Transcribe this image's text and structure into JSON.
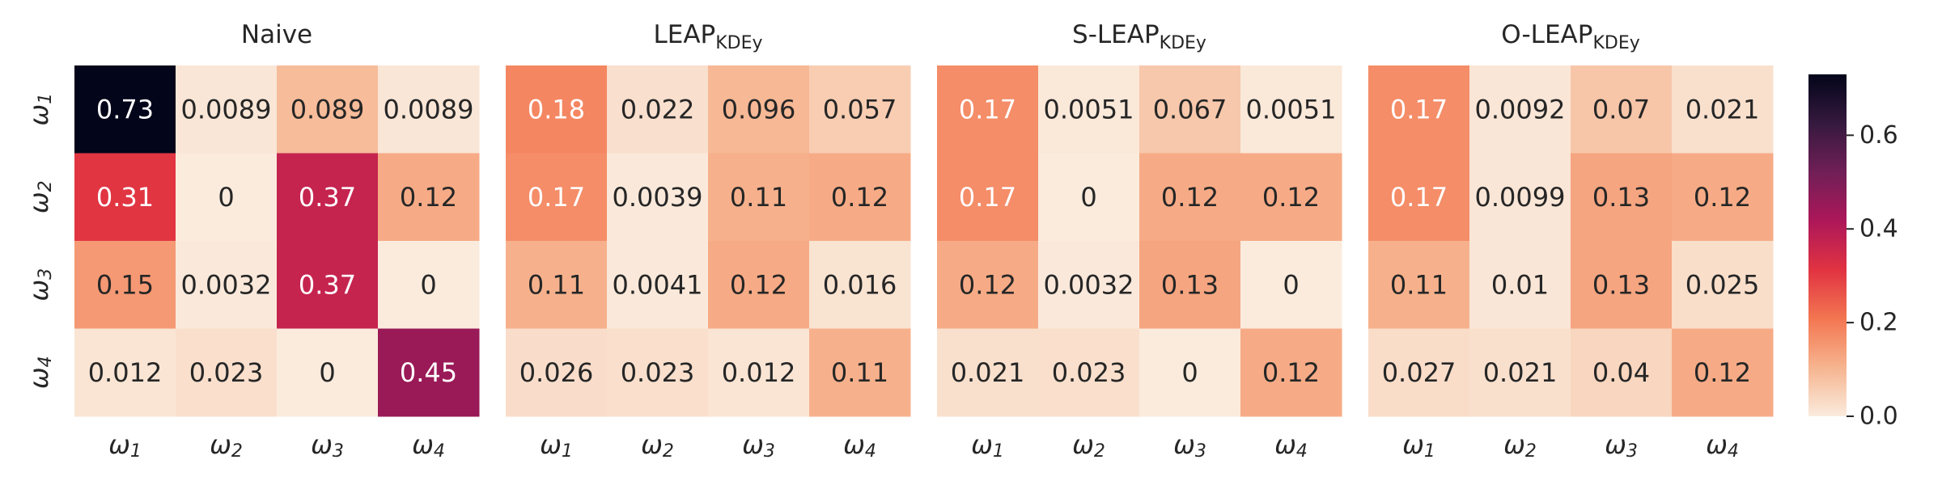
{
  "chart_data": [
    {
      "type": "heatmap",
      "title": "Naive",
      "title_subscript": "",
      "rows": [
        "ω1",
        "ω2",
        "ω3",
        "ω4"
      ],
      "cols": [
        "ω1",
        "ω2",
        "ω3",
        "ω4"
      ],
      "values": [
        [
          0.73,
          0.0089,
          0.089,
          0.0089
        ],
        [
          0.31,
          0,
          0.37,
          0.12
        ],
        [
          0.15,
          0.0032,
          0.37,
          0
        ],
        [
          0.012,
          0.023,
          0,
          0.45
        ]
      ],
      "labels": [
        [
          "0.73",
          "0.0089",
          "0.089",
          "0.0089"
        ],
        [
          "0.31",
          "0",
          "0.37",
          "0.12"
        ],
        [
          "0.15",
          "0.0032",
          "0.37",
          "0"
        ],
        [
          "0.012",
          "0.023",
          "0",
          "0.45"
        ]
      ]
    },
    {
      "type": "heatmap",
      "title": "LEAP",
      "title_subscript": "KDEy",
      "rows": [
        "ω1",
        "ω2",
        "ω3",
        "ω4"
      ],
      "cols": [
        "ω1",
        "ω2",
        "ω3",
        "ω4"
      ],
      "values": [
        [
          0.18,
          0.022,
          0.096,
          0.057
        ],
        [
          0.17,
          0.0039,
          0.11,
          0.12
        ],
        [
          0.11,
          0.0041,
          0.12,
          0.016
        ],
        [
          0.026,
          0.023,
          0.012,
          0.11
        ]
      ],
      "labels": [
        [
          "0.18",
          "0.022",
          "0.096",
          "0.057"
        ],
        [
          "0.17",
          "0.0039",
          "0.11",
          "0.12"
        ],
        [
          "0.11",
          "0.0041",
          "0.12",
          "0.016"
        ],
        [
          "0.026",
          "0.023",
          "0.012",
          "0.11"
        ]
      ]
    },
    {
      "type": "heatmap",
      "title": "S-LEAP",
      "title_subscript": "KDEy",
      "rows": [
        "ω1",
        "ω2",
        "ω3",
        "ω4"
      ],
      "cols": [
        "ω1",
        "ω2",
        "ω3",
        "ω4"
      ],
      "values": [
        [
          0.17,
          0.0051,
          0.067,
          0.0051
        ],
        [
          0.17,
          0,
          0.12,
          0.12
        ],
        [
          0.12,
          0.0032,
          0.13,
          0
        ],
        [
          0.021,
          0.023,
          0,
          0.12
        ]
      ],
      "labels": [
        [
          "0.17",
          "0.0051",
          "0.067",
          "0.0051"
        ],
        [
          "0.17",
          "0",
          "0.12",
          "0.12"
        ],
        [
          "0.12",
          "0.0032",
          "0.13",
          "0"
        ],
        [
          "0.021",
          "0.023",
          "0",
          "0.12"
        ]
      ]
    },
    {
      "type": "heatmap",
      "title": "O-LEAP",
      "title_subscript": "KDEy",
      "rows": [
        "ω1",
        "ω2",
        "ω3",
        "ω4"
      ],
      "cols": [
        "ω1",
        "ω2",
        "ω3",
        "ω4"
      ],
      "values": [
        [
          0.17,
          0.0092,
          0.07,
          0.021
        ],
        [
          0.17,
          0.0099,
          0.13,
          0.12
        ],
        [
          0.11,
          0.01,
          0.13,
          0.025
        ],
        [
          0.027,
          0.021,
          0.04,
          0.12
        ]
      ],
      "labels": [
        [
          "0.17",
          "0.0092",
          "0.07",
          "0.021"
        ],
        [
          "0.17",
          "0.0099",
          "0.13",
          "0.12"
        ],
        [
          "0.11",
          "0.01",
          "0.13",
          "0.025"
        ],
        [
          "0.027",
          "0.021",
          "0.04",
          "0.12"
        ]
      ]
    }
  ],
  "colorbar": {
    "vmin": 0.0,
    "vmax": 0.73,
    "ticks": [
      0.0,
      0.2,
      0.4,
      0.6
    ],
    "tick_labels": [
      "0.0",
      "0.2",
      "0.4",
      "0.6"
    ],
    "colormap": "rocket_r",
    "colormap_stops": [
      "#faebdd",
      "#f6b48f",
      "#f37651",
      "#e13342",
      "#ad1759",
      "#701f57",
      "#35193e",
      "#03051a"
    ]
  }
}
